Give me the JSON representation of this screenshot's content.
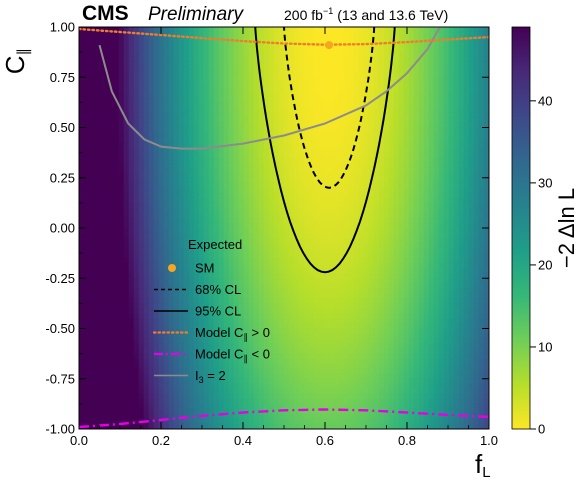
{
  "chart_data": {
    "type": "heatmap",
    "experiment": "CMS",
    "status": "Preliminary",
    "lumi": "200 fb",
    "lumi_exp": "−1",
    "energy": "(13 and 13.6 TeV)",
    "xlabel": "f",
    "xlabel_sub": "L",
    "ylabel": "C",
    "ylabel_sub": "∥",
    "xlim": [
      0.0,
      1.0
    ],
    "ylim": [
      -1.0,
      1.0
    ],
    "xticks": [
      "0.0",
      "0.2",
      "0.4",
      "0.6",
      "0.8",
      "1.0"
    ],
    "xtick_values": [
      0.0,
      0.2,
      0.4,
      0.6,
      0.8,
      1.0
    ],
    "yticks": [
      "-1.00",
      "-0.75",
      "-0.50",
      "-0.25",
      "0.00",
      "0.25",
      "0.50",
      "0.75",
      "1.00"
    ],
    "ytick_values": [
      -1.0,
      -0.75,
      -0.5,
      -0.25,
      0.0,
      0.25,
      0.5,
      0.75,
      1.0
    ],
    "colorbar": {
      "label": "−2 Δln L",
      "range": [
        0,
        49
      ],
      "ticks": [
        "0",
        "10",
        "20",
        "30",
        "40"
      ],
      "tick_values": [
        0,
        10,
        20,
        30,
        40
      ],
      "colormap": [
        "#fde725",
        "#b5de2b",
        "#6ece58",
        "#35b779",
        "#1f9e89",
        "#26828e",
        "#31688e",
        "#3e4989",
        "#482878",
        "#440154"
      ]
    },
    "legend": {
      "title": "Expected",
      "placement": "lower-left",
      "entries": [
        {
          "label": "SM",
          "style": "marker",
          "color": "#f5a623"
        },
        {
          "label": "68% CL",
          "style": "dashed",
          "color": "#000000"
        },
        {
          "label": "95% CL",
          "style": "solid",
          "color": "#000000"
        },
        {
          "label": "Model C",
          "label_sub": "∥",
          "label_tail": " > 0",
          "style": "dotted",
          "color": "#f07d2b"
        },
        {
          "label": "Model C",
          "label_sub": "∥",
          "label_tail": " < 0",
          "style": "dashdot",
          "color": "#e600e6"
        },
        {
          "label": "I",
          "label_sub": "3",
          "label_tail": " = 2",
          "style": "solid",
          "color": "#8c8c8c"
        }
      ]
    },
    "sm_point": {
      "x": 0.61,
      "y": 0.91
    },
    "likelihood_min": {
      "x": 0.61,
      "y": 0.91
    },
    "contours": {
      "cl68": {
        "x_center": 0.61,
        "x_halfwidth_top": 0.11,
        "y_top": 1.0,
        "y_bottom": 0.2
      },
      "cl95": {
        "x_center": 0.6,
        "x_halfwidth_top": 0.17,
        "y_top": 1.0,
        "y_bottom": -0.22
      }
    },
    "curves": {
      "model_cpar_pos": {
        "x": [
          0.0,
          0.1,
          0.2,
          0.3,
          0.4,
          0.5,
          0.6,
          0.7,
          0.8,
          0.9,
          1.0
        ],
        "y": [
          0.99,
          0.975,
          0.96,
          0.945,
          0.93,
          0.918,
          0.912,
          0.915,
          0.925,
          0.938,
          0.95
        ]
      },
      "model_cpar_neg": {
        "x": [
          0.0,
          0.1,
          0.2,
          0.3,
          0.4,
          0.5,
          0.6,
          0.7,
          0.8,
          0.9,
          1.0
        ],
        "y": [
          -0.99,
          -0.975,
          -0.955,
          -0.935,
          -0.918,
          -0.907,
          -0.903,
          -0.907,
          -0.918,
          -0.93,
          -0.94
        ]
      },
      "i3_eq_2": {
        "x": [
          0.05,
          0.08,
          0.12,
          0.16,
          0.2,
          0.25,
          0.3,
          0.4,
          0.5,
          0.6,
          0.7,
          0.75,
          0.8,
          0.85,
          0.88
        ],
        "y": [
          0.91,
          0.68,
          0.52,
          0.44,
          0.405,
          0.395,
          0.395,
          0.42,
          0.46,
          0.52,
          0.61,
          0.68,
          0.77,
          0.89,
          1.0
        ]
      }
    }
  }
}
